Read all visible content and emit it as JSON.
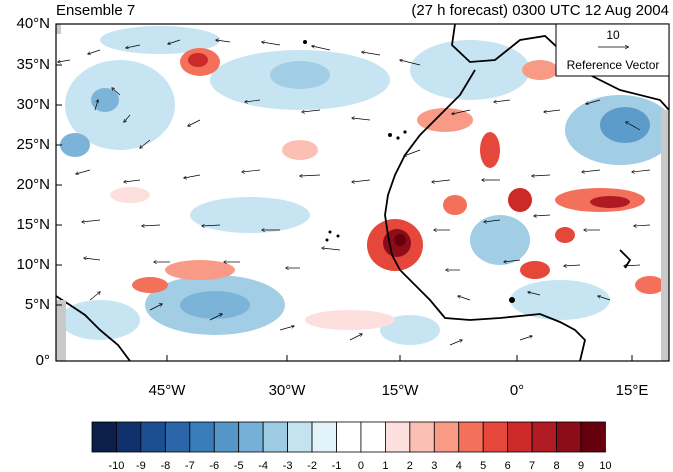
{
  "title_left": "Ensemble 7",
  "title_right": "(27 h forecast) 0300 UTC 12 Aug 2004",
  "reference_vector": {
    "value": "10",
    "label": "Reference Vector"
  },
  "lat_labels": [
    "40°N",
    "35°N",
    "30°N",
    "25°N",
    "20°N",
    "15°N",
    "10°N",
    "5°N",
    "0°"
  ],
  "lon_labels": [
    "45°W",
    "30°W",
    "15°W",
    "0°",
    "15°E"
  ],
  "colorbar": {
    "labels": [
      "-10",
      "-9",
      "-8",
      "-7",
      "-6",
      "-5",
      "-4",
      "-3",
      "-2",
      "-1",
      "0",
      "1",
      "2",
      "3",
      "4",
      "5",
      "6",
      "7",
      "8",
      "9",
      "10"
    ],
    "colors": [
      "#0b1f4a",
      "#10306b",
      "#1c4f91",
      "#2b66a8",
      "#3a7dbb",
      "#5596c9",
      "#76b0d8",
      "#9dcbe4",
      "#c3e3f1",
      "#e3f3fa",
      "#ffffff",
      "#ffffff",
      "#fde0dd",
      "#fbc0b3",
      "#f89a85",
      "#f3705a",
      "#e5473a",
      "#cc2a2a",
      "#b01a22",
      "#8c0d18",
      "#67000d"
    ]
  }
}
